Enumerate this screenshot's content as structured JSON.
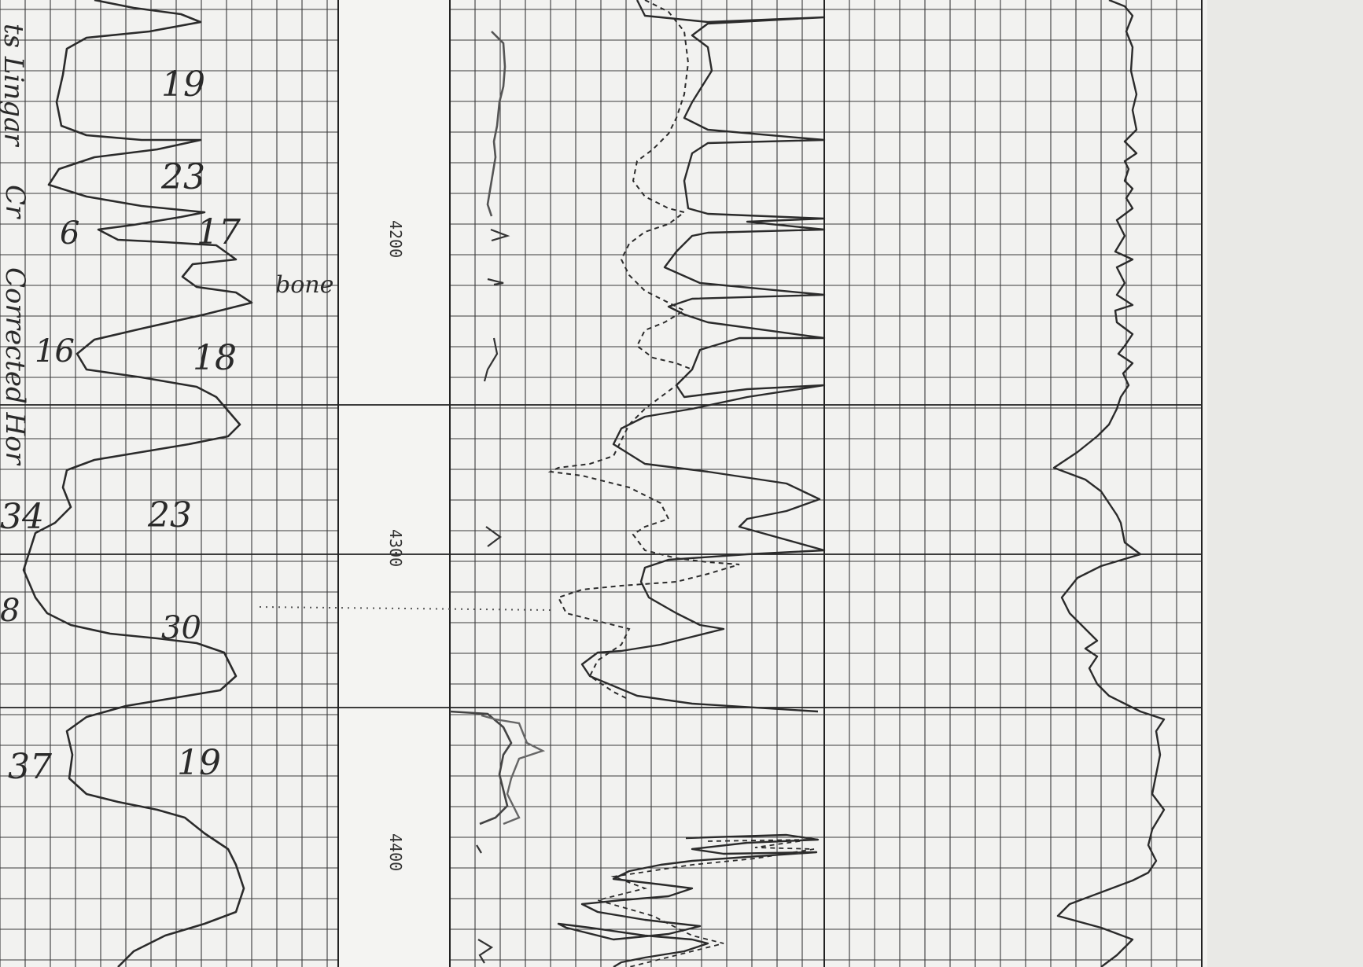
{
  "log": {
    "depth_labels": [
      "4200",
      "4300",
      "4400"
    ],
    "side_text": [
      "ts Lingar",
      "Cr",
      "Corrected Hor"
    ],
    "annotation_word": "bone",
    "left_values": [
      "6",
      "16",
      "34",
      "8",
      "37"
    ],
    "right_values": [
      "19",
      "23",
      "17",
      "18",
      "23",
      "30",
      "19"
    ]
  }
}
